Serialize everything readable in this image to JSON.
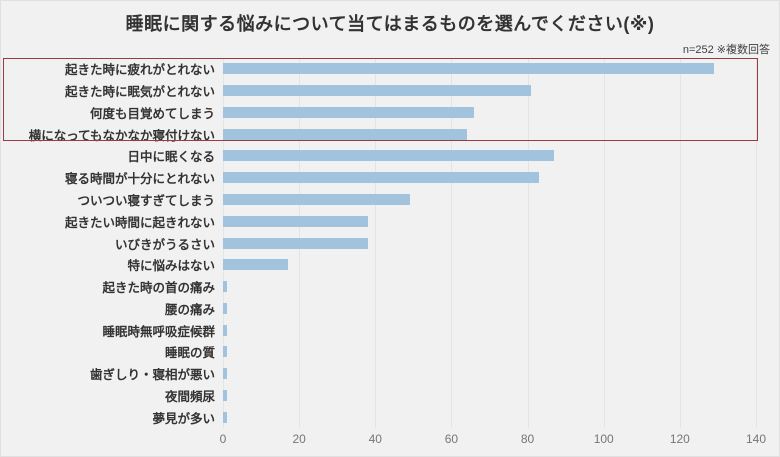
{
  "chart_data": {
    "type": "bar",
    "orientation": "horizontal",
    "title": "睡眠に関する悩みについて当てはまるものを選んでください(※)",
    "note": "n=252 ※複数回答",
    "categories": [
      "起きた時に疲れがとれない",
      "起きた時に眠気がとれない",
      "何度も目覚めてしまう",
      "横になってもなかなか寝付けない",
      "日中に眠くなる",
      "寝る時間が十分にとれない",
      "ついつい寝すぎてしまう",
      "起きたい時間に起きれない",
      "いびきがうるさい",
      "特に悩みはない",
      "起きた時の首の痛み",
      "腰の痛み",
      "睡眠時無呼吸症候群",
      "睡眠の質",
      "歯ぎしり・寝相が悪い",
      "夜間頻尿",
      "夢見が多い"
    ],
    "values": [
      129,
      81,
      66,
      64,
      87,
      83,
      49,
      38,
      38,
      17,
      1,
      1,
      1,
      1,
      1,
      1,
      1
    ],
    "xlim": [
      0,
      140
    ],
    "xticks": [
      0,
      20,
      40,
      60,
      80,
      100,
      120,
      140
    ],
    "grid": true,
    "legend": false,
    "bar_color": "#a2c3de",
    "background_color": "#f1f1f2",
    "highlight_box": {
      "rows_start": 0,
      "rows_end": 3,
      "border_color": "#9b3a45"
    }
  }
}
